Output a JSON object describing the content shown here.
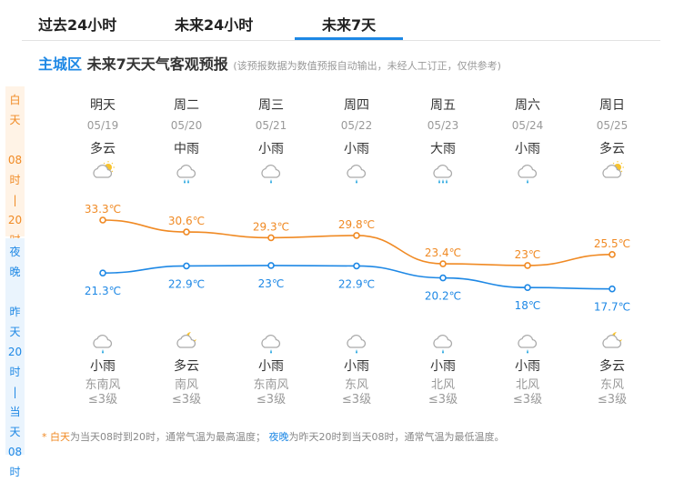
{
  "tabs": [
    {
      "label": "过去24小时"
    },
    {
      "label": "未来24小时"
    },
    {
      "label": "未来7天",
      "active": true
    }
  ],
  "header": {
    "location": "主城区",
    "title": "未来7天天气客观预报",
    "note": "(该预报数据为数值预报自动输出，未经人工订正，仅供参考)"
  },
  "side": {
    "day": [
      "白",
      "天",
      "",
      "08",
      "时",
      "|",
      "20",
      "时"
    ],
    "night": [
      "夜",
      "晚",
      "",
      "昨",
      "天",
      "20",
      "时",
      "|",
      "当",
      "天",
      "08",
      "时"
    ]
  },
  "colors": {
    "day": "#f08a24",
    "night": "#1e88e5",
    "accent": "#1e88e5"
  },
  "unit": "℃",
  "days": [
    {
      "week": "明天",
      "date": "05/19",
      "day_weather": "多云",
      "day_icon": "partly-cloudy-day-icon",
      "high": 33.3,
      "high_label": "33.3℃",
      "low": 21.3,
      "low_label": "21.3℃",
      "night_weather": "小雨",
      "night_icon": "light-rain-icon",
      "wind": "东南风",
      "wind_level": "≤3级"
    },
    {
      "week": "周二",
      "date": "05/20",
      "day_weather": "中雨",
      "day_icon": "moderate-rain-icon",
      "high": 30.6,
      "high_label": "30.6℃",
      "low": 22.9,
      "low_label": "22.9℃",
      "night_weather": "多云",
      "night_icon": "partly-cloudy-night-icon",
      "wind": "南风",
      "wind_level": "≤3级"
    },
    {
      "week": "周三",
      "date": "05/21",
      "day_weather": "小雨",
      "day_icon": "light-rain-icon",
      "high": 29.3,
      "high_label": "29.3℃",
      "low": 23,
      "low_label": "23℃",
      "night_weather": "小雨",
      "night_icon": "light-rain-icon",
      "wind": "东南风",
      "wind_level": "≤3级"
    },
    {
      "week": "周四",
      "date": "05/22",
      "day_weather": "小雨",
      "day_icon": "light-rain-icon",
      "high": 29.8,
      "high_label": "29.8℃",
      "low": 22.9,
      "low_label": "22.9℃",
      "night_weather": "小雨",
      "night_icon": "light-rain-icon",
      "wind": "东风",
      "wind_level": "≤3级"
    },
    {
      "week": "周五",
      "date": "05/23",
      "day_weather": "大雨",
      "day_icon": "heavy-rain-icon",
      "high": 23.4,
      "high_label": "23.4℃",
      "low": 20.2,
      "low_label": "20.2℃",
      "night_weather": "小雨",
      "night_icon": "light-rain-icon",
      "wind": "北风",
      "wind_level": "≤3级"
    },
    {
      "week": "周六",
      "date": "05/24",
      "day_weather": "小雨",
      "day_icon": "light-rain-icon",
      "high": 23,
      "high_label": "23℃",
      "low": 18,
      "low_label": "18℃",
      "night_weather": "小雨",
      "night_icon": "light-rain-icon",
      "wind": "北风",
      "wind_level": "≤3级"
    },
    {
      "week": "周日",
      "date": "05/25",
      "day_weather": "多云",
      "day_icon": "partly-cloudy-day-icon",
      "high": 25.5,
      "high_label": "25.5℃",
      "low": 17.7,
      "low_label": "17.7℃",
      "night_weather": "多云",
      "night_icon": "partly-cloudy-night-icon",
      "wind": "东风",
      "wind_level": "≤3级"
    }
  ],
  "footer": {
    "star": "* ",
    "day_label": "白天",
    "day_text": "为当天08时到20时，通常气温为最高温度；",
    "night_label": "夜晚",
    "night_text": "为昨天20时到当天08时，通常气温为最低温度。"
  }
}
